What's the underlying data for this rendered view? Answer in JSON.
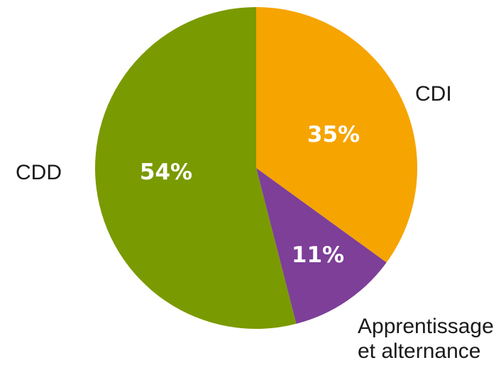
{
  "chart_data": {
    "type": "pie",
    "slices": [
      {
        "label": "CDI",
        "value": 35,
        "value_label": "35%",
        "color": "#F6A400"
      },
      {
        "label": "Apprentissage et alternance",
        "label_lines": [
          "Apprentissage",
          "et alternance"
        ],
        "value": 11,
        "value_label": "11%",
        "color": "#7D3F98"
      },
      {
        "label": "CDD",
        "value": 54,
        "value_label": "54%",
        "color": "#7A9A01"
      }
    ],
    "start_angle": "top, clockwise",
    "legend": "none"
  }
}
